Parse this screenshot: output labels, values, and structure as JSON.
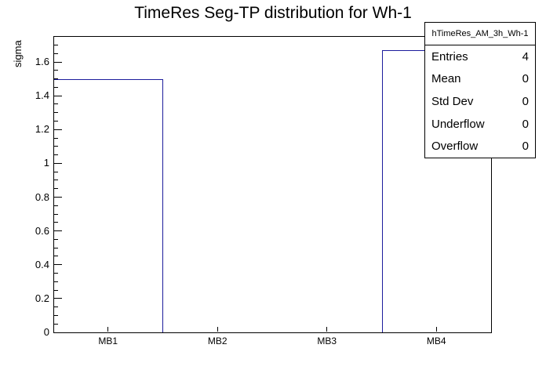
{
  "title": "TimeRes Seg-TP distribution for Wh-1",
  "y_axis": {
    "label": "sigma",
    "tick_labels": [
      "0",
      "0.2",
      "0.4",
      "0.6",
      "0.8",
      "1",
      "1.2",
      "1.4",
      "1.6"
    ]
  },
  "x_axis": {
    "categories": [
      "MB1",
      "MB2",
      "MB3",
      "MB4"
    ]
  },
  "stats_box": {
    "header": "hTimeRes_AM_3h_Wh-1",
    "rows": [
      {
        "label": "Entries",
        "value": "4"
      },
      {
        "label": "Mean",
        "value": "0"
      },
      {
        "label": "Std Dev",
        "value": "0"
      },
      {
        "label": "Underflow",
        "value": "0"
      },
      {
        "label": "Overflow",
        "value": "0"
      }
    ]
  },
  "chart_data": {
    "type": "bar",
    "categories": [
      "MB1",
      "MB2",
      "MB3",
      "MB4"
    ],
    "values": [
      1.5,
      0,
      0,
      1.67
    ],
    "title": "TimeRes Seg-TP distribution for Wh-1",
    "xlabel": "",
    "ylabel": "sigma",
    "ylim": [
      0,
      1.7535
    ],
    "y_major_step": 0.2,
    "y_minor_step": 0.05,
    "bar_style": "outline",
    "line_color": "#1c1c9c",
    "axis_color": "#000000",
    "background_color": "#ffffff",
    "grid": false,
    "legend": false,
    "stats": {
      "name": "hTimeRes_AM_3h_Wh-1",
      "entries": 4,
      "mean": 0,
      "std_dev": 0,
      "underflow": 0,
      "overflow": 0
    }
  }
}
